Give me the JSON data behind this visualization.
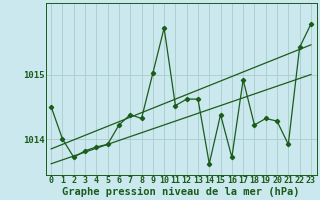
{
  "bg_color": "#cce8ef",
  "plot_bg_color": "#cce8ef",
  "line_color": "#1a5c1a",
  "grid_color": "#aacccc",
  "xlabel": "Graphe pression niveau de la mer (hPa)",
  "ylabel_ticks": [
    1014,
    1015
  ],
  "x_values": [
    0,
    1,
    2,
    3,
    4,
    5,
    6,
    7,
    8,
    9,
    10,
    11,
    12,
    13,
    14,
    15,
    16,
    17,
    18,
    19,
    20,
    21,
    22,
    23
  ],
  "main_line": [
    1014.5,
    1014.0,
    1013.72,
    1013.82,
    1013.88,
    1013.92,
    1014.22,
    1014.38,
    1014.32,
    1015.02,
    1015.72,
    1014.52,
    1014.62,
    1014.62,
    1013.62,
    1014.38,
    1013.72,
    1014.92,
    1014.22,
    1014.32,
    1014.28,
    1013.92,
    1015.42,
    1015.78
  ],
  "trend_upper": [
    1013.85,
    1013.92,
    1013.99,
    1014.06,
    1014.13,
    1014.2,
    1014.27,
    1014.34,
    1014.41,
    1014.48,
    1014.55,
    1014.62,
    1014.69,
    1014.76,
    1014.83,
    1014.9,
    1014.97,
    1015.04,
    1015.11,
    1015.18,
    1015.25,
    1015.32,
    1015.39,
    1015.46
  ],
  "trend_lower": [
    1013.62,
    1013.68,
    1013.74,
    1013.8,
    1013.86,
    1013.92,
    1013.98,
    1014.04,
    1014.1,
    1014.16,
    1014.22,
    1014.28,
    1014.34,
    1014.4,
    1014.46,
    1014.52,
    1014.58,
    1014.64,
    1014.7,
    1014.76,
    1014.82,
    1014.88,
    1014.94,
    1015.0
  ],
  "ylim": [
    1013.45,
    1016.1
  ],
  "xlim": [
    -0.5,
    23.5
  ],
  "tick_fontsize": 6.5,
  "label_fontsize": 7.5
}
